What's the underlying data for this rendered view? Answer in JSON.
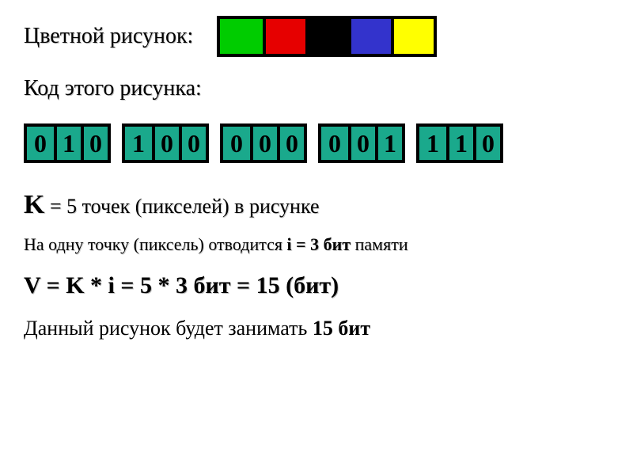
{
  "labels": {
    "title1": "Цветной рисунок:",
    "title2": "Код этого рисунка:"
  },
  "color_strip": {
    "border_color": "#000000",
    "cells": [
      {
        "fill": "#00cc00"
      },
      {
        "fill": "#e60000"
      },
      {
        "fill": "#000000"
      },
      {
        "fill": "#3333cc"
      },
      {
        "fill": "#ffff00"
      }
    ]
  },
  "code": {
    "cell_bg": "#1aa98c",
    "cell_fg": "#000000",
    "border_color": "#000000",
    "groups": [
      [
        "0",
        "1",
        "0"
      ],
      [
        "1",
        "0",
        "0"
      ],
      [
        "0",
        "0",
        "0"
      ],
      [
        "0",
        "0",
        "1"
      ],
      [
        "1",
        "1",
        "0"
      ]
    ]
  },
  "text": {
    "k_prefix": "K",
    "k_rest": " = 5 точек (пикселей) в рисунке",
    "per_pixel_pre": "На одну точку (пиксель) отводится ",
    "per_pixel_bold": "i = 3 бит",
    "per_pixel_post": " памяти",
    "formula": "V = K * i = 5 * 3 бит = 15 (бит)",
    "final_pre": "Данный рисунок будет занимать ",
    "final_bold": "15 бит"
  },
  "style": {
    "body_bg": "#ffffff",
    "body_fg": "#000000",
    "font_family": "Times New Roman"
  }
}
